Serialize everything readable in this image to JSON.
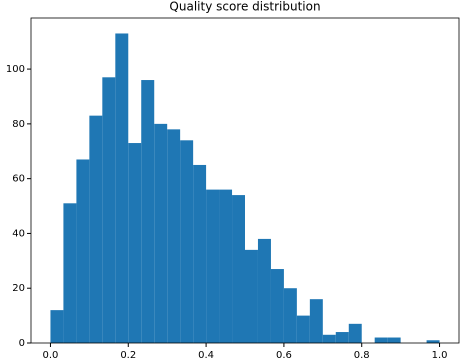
{
  "chart_data": {
    "type": "histogram",
    "title": "Quality score distribution",
    "bins": [
      0,
      0.0333,
      0.0667,
      0.1,
      0.1333,
      0.1667,
      0.2,
      0.2333,
      0.2667,
      0.3,
      0.3333,
      0.3667,
      0.4,
      0.4333,
      0.4667,
      0.5,
      0.5333,
      0.5667,
      0.6,
      0.6333,
      0.6667,
      0.7,
      0.7333,
      0.7667,
      0.8,
      0.8333,
      0.8667,
      0.9,
      0.9333,
      0.9667,
      1
    ],
    "values": [
      12,
      51,
      67,
      83,
      97,
      113,
      73,
      96,
      80,
      78,
      74,
      65,
      56,
      56,
      54,
      34,
      38,
      27,
      20,
      10,
      16,
      3,
      4,
      7,
      0,
      2,
      2,
      0,
      0,
      1
    ],
    "color": "#1f77b4",
    "xlim": [
      -0.05,
      1.05
    ],
    "ylim": [
      0,
      118.65
    ],
    "xticks": [
      {
        "value": 0,
        "label": "0.0"
      },
      0.2,
      0.4,
      0.6,
      0.8,
      {
        "value": 1,
        "label": "1.0"
      }
    ],
    "yticks": [
      0,
      20,
      40,
      60,
      80,
      100
    ]
  }
}
